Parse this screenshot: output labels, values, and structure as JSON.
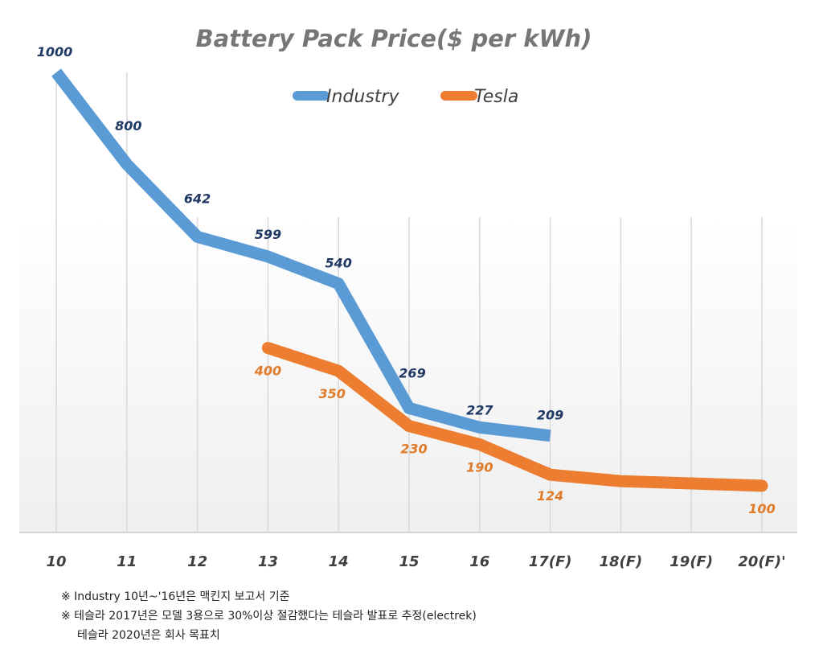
{
  "chart_data": {
    "type": "line",
    "title": "Battery Pack Price($ per kWh)",
    "xlabel": "",
    "ylabel": "",
    "categories": [
      "10",
      "11",
      "12",
      "13",
      "14",
      "15",
      "16",
      "17(F)",
      "18(F)",
      "19(F)",
      "20(F)'"
    ],
    "ylim": [
      0,
      1000
    ],
    "grid": "vertical",
    "legend": "top-center",
    "series": [
      {
        "name": "Industry",
        "color": "#5b9bd5",
        "label_color": "#1f3864",
        "values": [
          1000,
          800,
          642,
          599,
          540,
          269,
          227,
          209,
          null,
          null,
          null
        ],
        "labels": [
          "1000",
          "800",
          "642",
          "599",
          "540",
          "269",
          "227",
          "209",
          "",
          "",
          ""
        ]
      },
      {
        "name": "Tesla",
        "color": "#ed7d31",
        "label_color": "#e07b2a",
        "values": [
          null,
          null,
          null,
          400,
          350,
          230,
          190,
          124,
          110,
          105,
          100
        ],
        "labels": [
          "",
          "",
          "",
          "400",
          "350",
          "230",
          "190",
          "124",
          "",
          "",
          "100"
        ]
      }
    ]
  },
  "notes": [
    "※ Industry 10년~'16년은 맥킨지 보고서 기준",
    "※ 테슬라 2017년은 모델 3용으로 30%이상 절감했다는 테슬라 발표로 추정(electrek)",
    "테슬라 2020년은 회사 목표치"
  ]
}
